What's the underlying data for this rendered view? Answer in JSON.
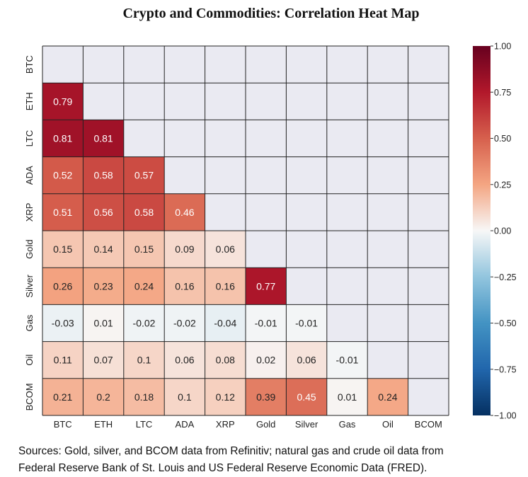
{
  "title": "Crypto and Commodities: Correlation Heat Map",
  "chart_data": {
    "type": "heatmap",
    "title": "Crypto and Commodities: Correlation Heat Map",
    "row_labels": [
      "BTC",
      "ETH",
      "LTC",
      "ADA",
      "XRP",
      "Gold",
      "Silver",
      "Gas",
      "Oil",
      "BCOM"
    ],
    "col_labels": [
      "BTC",
      "ETH",
      "LTC",
      "ADA",
      "XRP",
      "Gold",
      "Silver",
      "Gas",
      "Oil",
      "BCOM"
    ],
    "mask": "upper triangle including diagonal",
    "values": [
      [],
      [
        0.79
      ],
      [
        0.81,
        0.81
      ],
      [
        0.52,
        0.58,
        0.57
      ],
      [
        0.51,
        0.56,
        0.58,
        0.46
      ],
      [
        0.15,
        0.14,
        0.15,
        0.09,
        0.06
      ],
      [
        0.26,
        0.23,
        0.24,
        0.16,
        0.16,
        0.77
      ],
      [
        -0.03,
        0.01,
        -0.02,
        -0.02,
        -0.04,
        -0.01,
        -0.01
      ],
      [
        0.11,
        0.07,
        0.1,
        0.06,
        0.08,
        0.02,
        0.06,
        -0.01
      ],
      [
        0.21,
        0.2,
        0.18,
        0.1,
        0.12,
        0.39,
        0.45,
        0.01,
        0.24
      ]
    ],
    "colorbar": {
      "range": [
        -1.0,
        1.0
      ],
      "ticks": [
        "1.00",
        "0.75",
        "0.50",
        "0.25",
        "0.00",
        "−0.25",
        "−0.50",
        "−0.75",
        "−1.00"
      ],
      "colormap": "diverging blue-white-red"
    },
    "grid": true
  },
  "colors": {
    "masked": "#eaeaf2",
    "grid": "#222222",
    "high": "#b2182b",
    "low": "#2166ac",
    "mid": "#f7f7f7"
  },
  "source": {
    "line1": "Sources: Gold, silver, and BCOM data from Refinitiv; natural gas and crude oil data from",
    "line2": "Federal Reserve Bank of St. Louis and US Federal Reserve Economic Data (FRED)."
  }
}
